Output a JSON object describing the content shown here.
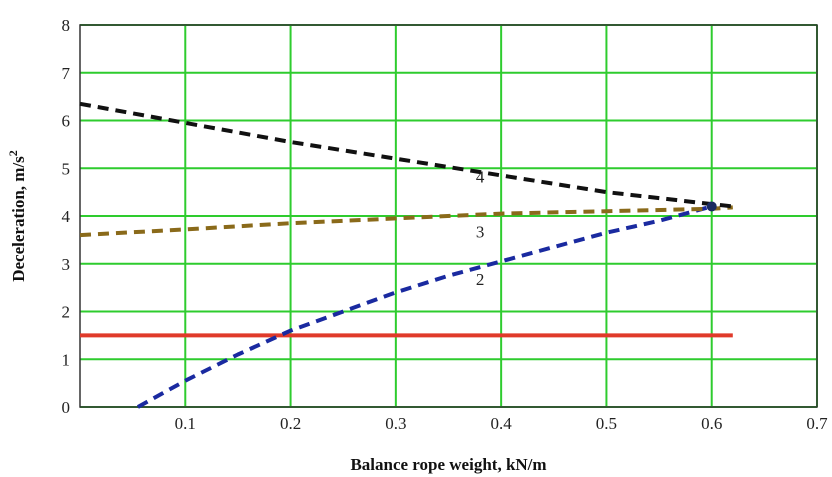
{
  "chart_data": {
    "type": "line",
    "title": "",
    "xlabel": "Balance rope weight, kN/m",
    "ylabel": "Deceleration, m/s",
    "ylabel_superscript": "2",
    "xlim": [
      0,
      0.7
    ],
    "ylim": [
      0,
      8
    ],
    "x_ticks": [
      "0.1",
      "0.2",
      "0.3",
      "0.4",
      "0.5",
      "0.6",
      "0.7"
    ],
    "y_ticks": [
      "0",
      "1",
      "2",
      "3",
      "4",
      "5",
      "6",
      "7",
      "8"
    ],
    "grid": true,
    "series": [
      {
        "name": "1",
        "color": "#e03a2a",
        "style": "solid",
        "label_at": [
          0.615,
          1.5
        ],
        "x": [
          0.0,
          0.62
        ],
        "y": [
          1.5,
          1.5
        ]
      },
      {
        "name": "2",
        "color": "#1a2aa0",
        "style": "dashed",
        "label_at": [
          0.38,
          2.55
        ],
        "x": [
          0.055,
          0.1,
          0.15,
          0.2,
          0.25,
          0.3,
          0.35,
          0.4,
          0.45,
          0.5,
          0.55,
          0.6
        ],
        "y": [
          0.0,
          0.55,
          1.1,
          1.6,
          2.0,
          2.4,
          2.75,
          3.05,
          3.35,
          3.65,
          3.9,
          4.2
        ]
      },
      {
        "name": "3",
        "color": "#8a6a1a",
        "style": "dashed",
        "label_at": [
          0.38,
          3.55
        ],
        "x": [
          0.0,
          0.1,
          0.2,
          0.3,
          0.4,
          0.5,
          0.6,
          0.62
        ],
        "y": [
          3.6,
          3.72,
          3.85,
          3.95,
          4.05,
          4.1,
          4.15,
          4.18
        ]
      },
      {
        "name": "4",
        "color": "#111111",
        "style": "dashed",
        "label_at": [
          0.38,
          4.7
        ],
        "x": [
          0.0,
          0.1,
          0.2,
          0.3,
          0.4,
          0.5,
          0.6,
          0.62
        ],
        "y": [
          6.35,
          5.95,
          5.55,
          5.2,
          4.85,
          4.5,
          4.25,
          4.2
        ]
      }
    ],
    "marker": {
      "x": 0.6,
      "y": 4.2
    },
    "grid_color": "#2ecc2e"
  }
}
